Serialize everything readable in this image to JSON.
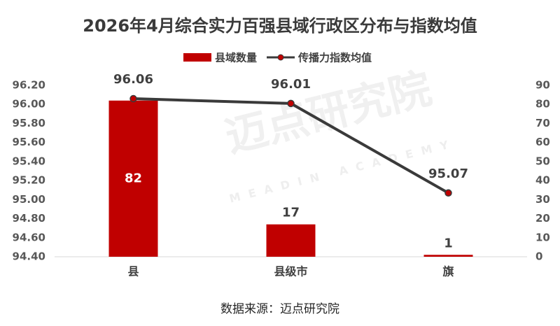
{
  "chart_data": {
    "type": "bar-line",
    "title": "2026年4月综合实力百强县域行政区分布与指数均值",
    "categories": [
      "县",
      "县级市",
      "旗"
    ],
    "series": [
      {
        "name": "县域数量",
        "type": "bar",
        "axis": "y2",
        "color": "#c00000",
        "values": [
          82,
          17,
          1
        ]
      },
      {
        "name": "传播力指数均值",
        "type": "line",
        "axis": "y",
        "color": "#3a3a3a",
        "marker_color": "#c00000",
        "values": [
          96.06,
          96.01,
          95.07
        ]
      }
    ],
    "ylim": [
      94.4,
      96.2
    ],
    "yticks": [
      {
        "value": 94.4,
        "label": "94.40"
      },
      {
        "value": 94.6,
        "label": "94.60"
      },
      {
        "value": 94.8,
        "label": "94.80"
      },
      {
        "value": 95.0,
        "label": "95.00"
      },
      {
        "value": 95.2,
        "label": "95.20"
      },
      {
        "value": 95.4,
        "label": "95.40"
      },
      {
        "value": 95.6,
        "label": "95.60"
      },
      {
        "value": 95.8,
        "label": "95.80"
      },
      {
        "value": 96.0,
        "label": "96.00"
      },
      {
        "value": 96.2,
        "label": "96.20"
      }
    ],
    "y2lim": [
      0,
      90
    ],
    "y2ticks": [
      0,
      10,
      20,
      30,
      40,
      50,
      60,
      70,
      80,
      90
    ],
    "grid": false,
    "legend": "top",
    "source": "数据来源：迈点研究院",
    "watermark": "迈点研究院",
    "watermark_en": "MEADIN ACADEMY"
  }
}
